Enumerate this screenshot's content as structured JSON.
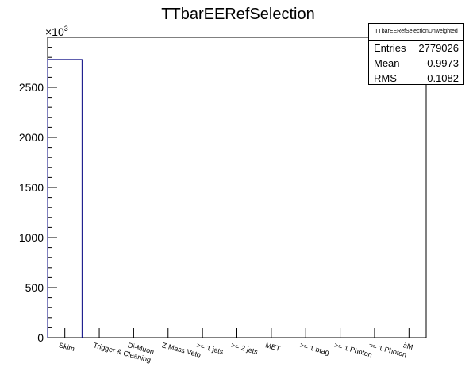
{
  "chart_data": {
    "type": "bar",
    "title": "TTbarEERefSelection",
    "categories": [
      "Skim",
      "Trigger & Cleaning",
      "Di-Muon",
      "Z Mass Veto",
      ">= 1 jets",
      ">= 2 jets",
      "MET",
      ">= 1 btag",
      ">= 1 Photon",
      "== 1 Photon",
      "àM"
    ],
    "values": [
      2779026,
      0,
      0,
      0,
      0,
      0,
      0,
      0,
      0,
      0,
      0
    ],
    "ylim": [
      0,
      3000000
    ],
    "y_ticks": [
      0,
      500,
      1000,
      1500,
      2000,
      2500
    ],
    "y_multiplier": "×10",
    "y_multiplier_exp": "3",
    "grid": false,
    "line_color": "#00007f"
  },
  "stats": {
    "title": "TTbarEERefSelectionUnweighted",
    "rows": [
      {
        "label": "Entries",
        "value": "2779026"
      },
      {
        "label": "Mean",
        "value": "-0.9973"
      },
      {
        "label": "RMS",
        "value": "0.1082"
      }
    ]
  }
}
